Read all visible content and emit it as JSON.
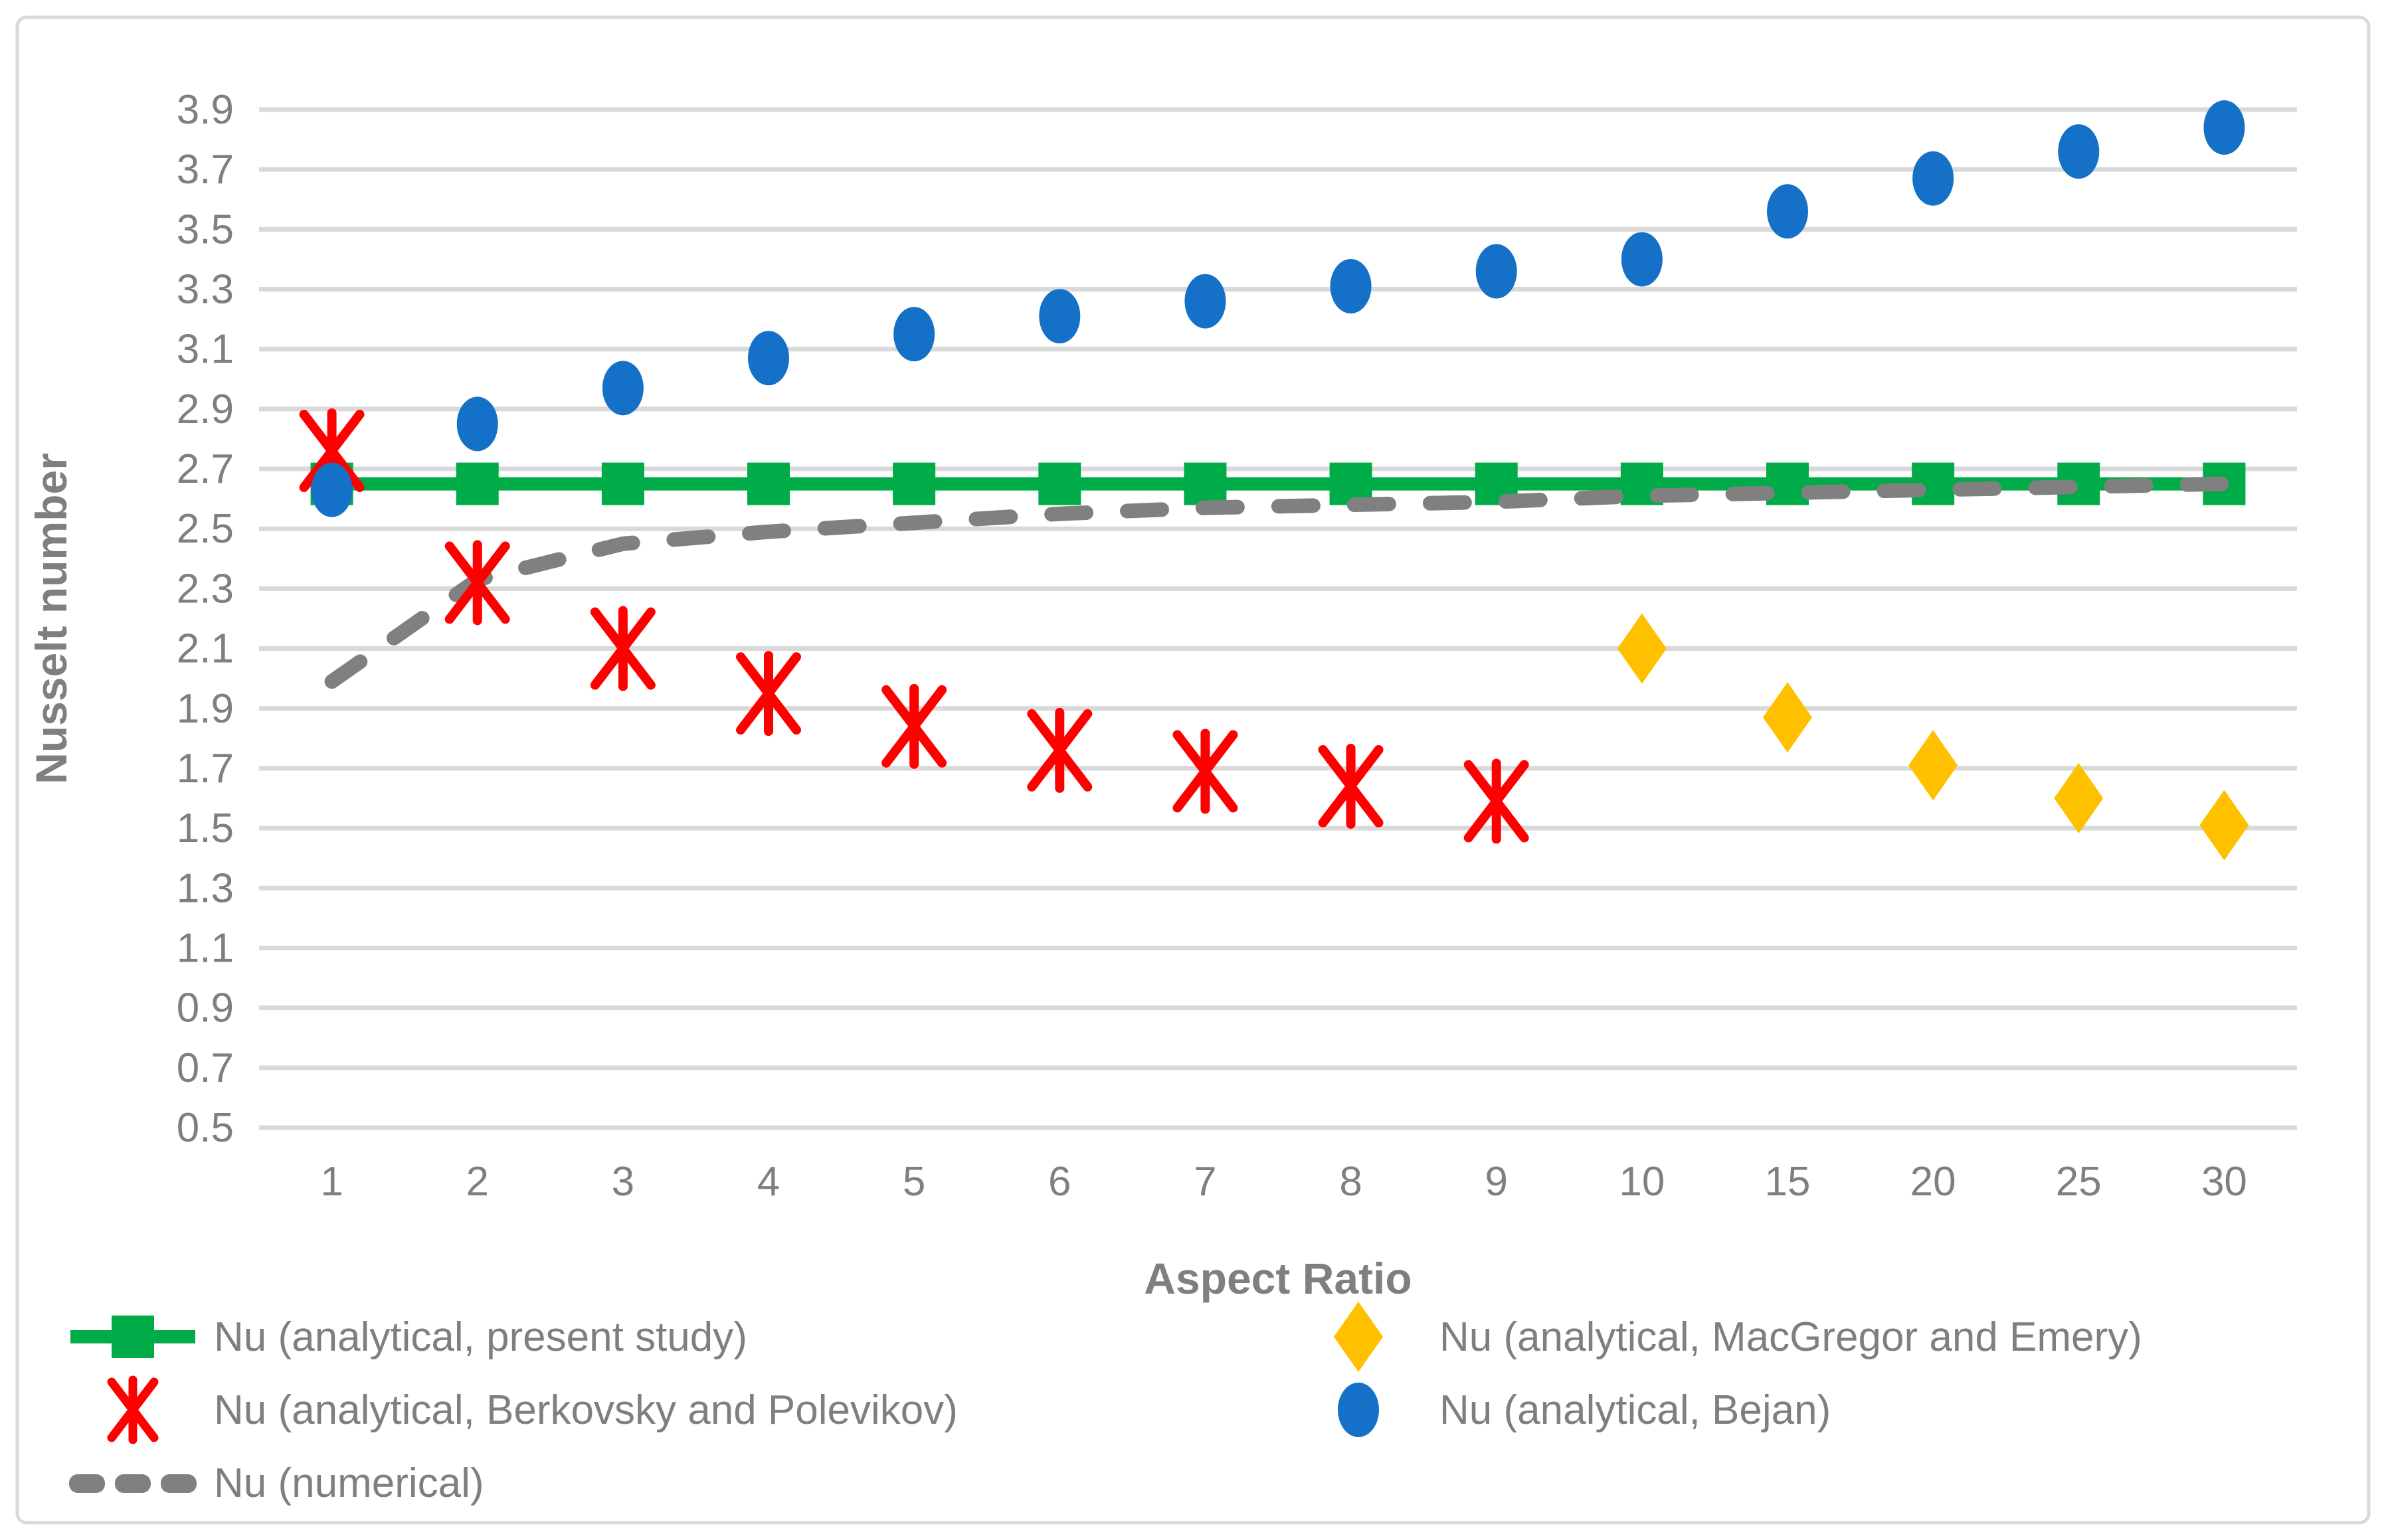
{
  "colors": {
    "grid": "#d9d9d9",
    "border": "#d9d9d9",
    "axis_text": "#7f7f7f",
    "background": "#ffffff"
  },
  "chart_data": {
    "type": "line",
    "categories": [
      "1",
      "2",
      "3",
      "4",
      "5",
      "6",
      "7",
      "8",
      "9",
      "10",
      "15",
      "20",
      "25",
      "30"
    ],
    "xlabel": "Aspect Ratio",
    "ylabel": "Nusselt number",
    "ylim": [
      0.5,
      3.9
    ],
    "ytick_step": 0.2,
    "grid": true,
    "legend_position": "bottom",
    "series": [
      {
        "name": "Nu (analytical, present study)",
        "kind": "line",
        "marker": "square",
        "color": "#00ac47",
        "values": [
          2.65,
          2.65,
          2.65,
          2.65,
          2.65,
          2.65,
          2.65,
          2.65,
          2.65,
          2.65,
          2.65,
          2.65,
          2.65,
          2.65
        ]
      },
      {
        "name": "Nu (analytical, Berkovsky and Polevikov)",
        "kind": "scatter",
        "marker": "star",
        "color": "#ff0000",
        "values": [
          2.76,
          2.32,
          2.1,
          1.95,
          1.84,
          1.76,
          1.69,
          1.64,
          1.59,
          null,
          null,
          null,
          null,
          null
        ]
      },
      {
        "name": "Nu (numerical)",
        "kind": "dashed-line",
        "marker": "none",
        "color": "#808080",
        "values": [
          1.99,
          2.33,
          2.45,
          2.49,
          2.52,
          2.55,
          2.57,
          2.58,
          2.59,
          2.61,
          2.62,
          2.63,
          2.64,
          2.65
        ]
      },
      {
        "name": "Nu (analytical, MacGregor and Emery)",
        "kind": "scatter",
        "marker": "diamond",
        "color": "#ffc000",
        "values": [
          null,
          null,
          null,
          null,
          null,
          null,
          null,
          null,
          null,
          2.1,
          1.87,
          1.71,
          1.6,
          1.51
        ]
      },
      {
        "name": "Nu (analytical, Bejan)",
        "kind": "scatter",
        "marker": "circle",
        "color": "#1571c7",
        "values": [
          2.63,
          2.85,
          2.97,
          3.07,
          3.15,
          3.21,
          3.26,
          3.31,
          3.36,
          3.4,
          3.56,
          3.67,
          3.76,
          3.84
        ]
      }
    ]
  }
}
